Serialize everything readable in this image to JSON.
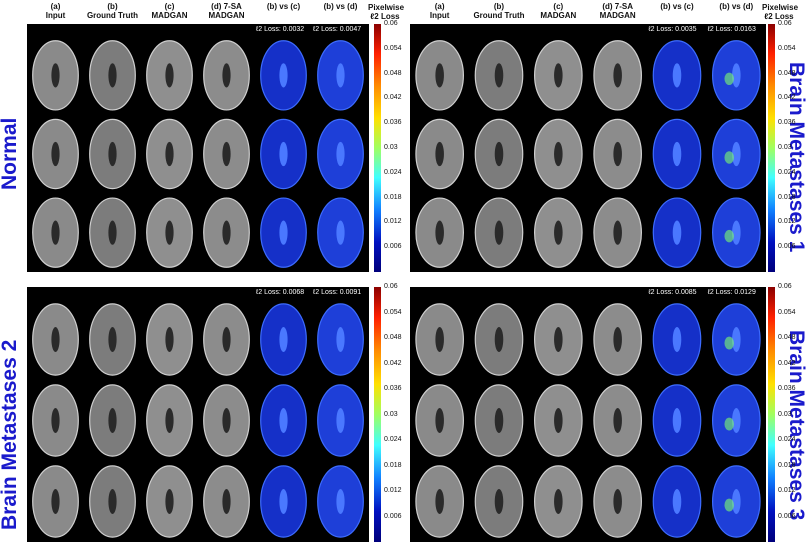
{
  "column_headers": [
    {
      "letter": "(a)",
      "name": "Input"
    },
    {
      "letter": "(b)",
      "name": "Ground Truth"
    },
    {
      "letter": "(c)",
      "name": "MADGAN"
    },
    {
      "letter": "(d) 7-SA",
      "name": "MADGAN"
    },
    {
      "letter": "(b) vs (c)",
      "name": ""
    },
    {
      "letter": "(b) vs (d)",
      "name": ""
    }
  ],
  "colorbar": {
    "title_line1": "Pixelwise",
    "title_line2": "ℓ2 Loss",
    "ticks": [
      "0.06",
      "0.054",
      "0.048",
      "0.042",
      "0.036",
      "0.03",
      "0.024",
      "0.018",
      "0.012",
      "0.006"
    ]
  },
  "panels": [
    {
      "label": "Normal",
      "loss_c": "ℓ2 Loss: 0.0032",
      "loss_d": "ℓ2 Loss: 0.0047"
    },
    {
      "label": "Brain Metastases 1",
      "loss_c": "ℓ2 Loss: 0.0035",
      "loss_d": "ℓ2 Loss: 0.0163"
    },
    {
      "label": "Brain Metastases 2",
      "loss_c": "ℓ2 Loss: 0.0068",
      "loss_d": "ℓ2 Loss: 0.0091"
    },
    {
      "label": "Brain Metastases 3",
      "loss_c": "ℓ2 Loss: 0.0085",
      "loss_d": "ℓ2 Loss: 0.0129"
    }
  ]
}
